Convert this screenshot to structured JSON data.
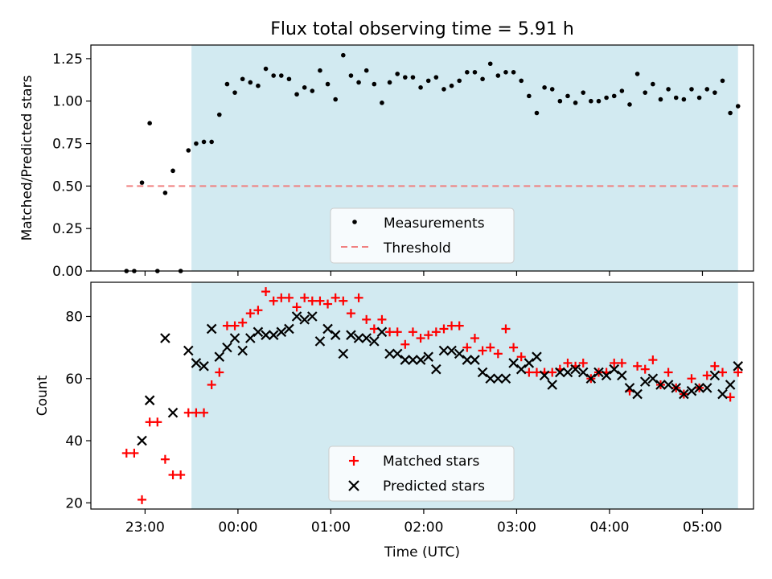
{
  "title": "Flux total observing time = 5.91 h",
  "xlabel": "Time (UTC)",
  "x_ticks": [
    "23:00",
    "00:00",
    "01:00",
    "02:00",
    "03:00",
    "04:00",
    "05:00"
  ],
  "shaded_region": {
    "start": "23:30",
    "end": "05:23",
    "color": "#add8e6"
  },
  "chart_data": [
    {
      "type": "scatter",
      "ylabel": "Matched/Predicted stars",
      "xlim": [
        "22:25",
        "05:33"
      ],
      "ylim": [
        0,
        1.33
      ],
      "y_ticks": [
        "0.00",
        "0.25",
        "0.50",
        "0.75",
        "1.00",
        "1.25"
      ],
      "legend": {
        "position": "lower-center"
      },
      "series": [
        {
          "name": "Measurements",
          "color": "#000000",
          "marker": "dot",
          "x": [
            "22:48",
            "22:53",
            "22:58",
            "23:03",
            "23:08",
            "23:13",
            "23:18",
            "23:23",
            "23:28",
            "23:33",
            "23:38",
            "23:43",
            "23:48",
            "23:53",
            "23:58",
            "00:03",
            "00:08",
            "00:13",
            "00:18",
            "00:23",
            "00:28",
            "00:33",
            "00:38",
            "00:43",
            "00:48",
            "00:53",
            "00:58",
            "01:03",
            "01:08",
            "01:13",
            "01:18",
            "01:23",
            "01:28",
            "01:33",
            "01:38",
            "01:43",
            "01:48",
            "01:53",
            "01:58",
            "02:03",
            "02:08",
            "02:13",
            "02:18",
            "02:23",
            "02:28",
            "02:33",
            "02:38",
            "02:43",
            "02:48",
            "02:53",
            "02:58",
            "03:03",
            "03:08",
            "03:13",
            "03:18",
            "03:23",
            "03:28",
            "03:33",
            "03:38",
            "03:43",
            "03:48",
            "03:53",
            "03:58",
            "04:03",
            "04:08",
            "04:13",
            "04:18",
            "04:23",
            "04:28",
            "04:33",
            "04:38",
            "04:43",
            "04:48",
            "04:53",
            "04:58",
            "05:03",
            "05:08",
            "05:13",
            "05:18",
            "05:23"
          ],
          "y": [
            0.0,
            0.0,
            0.52,
            0.87,
            0.0,
            0.46,
            0.59,
            0.0,
            0.71,
            0.75,
            0.76,
            0.76,
            0.92,
            1.1,
            1.05,
            1.13,
            1.11,
            1.09,
            1.19,
            1.15,
            1.15,
            1.13,
            1.04,
            1.08,
            1.06,
            1.18,
            1.1,
            1.01,
            1.27,
            1.15,
            1.11,
            1.18,
            1.1,
            0.99,
            1.11,
            1.16,
            1.14,
            1.14,
            1.08,
            1.12,
            1.14,
            1.07,
            1.09,
            1.12,
            1.17,
            1.17,
            1.13,
            1.22,
            1.15,
            1.17,
            1.17,
            1.12,
            1.03,
            0.93,
            1.08,
            1.07,
            1.0,
            1.03,
            0.99,
            1.05,
            1.0,
            1.0,
            1.02,
            1.03,
            1.06,
            0.98,
            1.16,
            1.05,
            1.1,
            1.01,
            1.07,
            1.02,
            1.01,
            1.07,
            1.02,
            1.07,
            1.05,
            1.12,
            0.93,
            0.97
          ]
        },
        {
          "name": "Threshold",
          "color": "#f08080",
          "style": "dashed",
          "x": [
            "22:48",
            "05:23"
          ],
          "y": [
            0.5,
            0.5
          ]
        }
      ]
    },
    {
      "type": "scatter",
      "ylabel": "Count",
      "xlim": [
        "22:25",
        "05:33"
      ],
      "ylim": [
        18,
        91
      ],
      "y_ticks": [
        "20",
        "40",
        "60",
        "80"
      ],
      "legend": {
        "position": "lower-center"
      },
      "series": [
        {
          "name": "Matched stars",
          "color": "#ff0000",
          "marker": "plus",
          "x": [
            "22:48",
            "22:53",
            "22:58",
            "23:03",
            "23:08",
            "23:13",
            "23:18",
            "23:23",
            "23:28",
            "23:33",
            "23:38",
            "23:43",
            "23:48",
            "23:53",
            "23:58",
            "00:03",
            "00:08",
            "00:13",
            "00:18",
            "00:23",
            "00:28",
            "00:33",
            "00:38",
            "00:43",
            "00:48",
            "00:53",
            "00:58",
            "01:03",
            "01:08",
            "01:13",
            "01:18",
            "01:23",
            "01:28",
            "01:33",
            "01:38",
            "01:43",
            "01:48",
            "01:53",
            "01:58",
            "02:03",
            "02:08",
            "02:13",
            "02:18",
            "02:23",
            "02:28",
            "02:33",
            "02:38",
            "02:43",
            "02:48",
            "02:53",
            "02:58",
            "03:03",
            "03:08",
            "03:13",
            "03:18",
            "03:23",
            "03:28",
            "03:33",
            "03:38",
            "03:43",
            "03:48",
            "03:53",
            "03:58",
            "04:03",
            "04:08",
            "04:13",
            "04:18",
            "04:23",
            "04:28",
            "04:33",
            "04:38",
            "04:43",
            "04:48",
            "04:53",
            "04:58",
            "05:03",
            "05:08",
            "05:13",
            "05:18",
            "05:23"
          ],
          "y": [
            36,
            36,
            21,
            46,
            46,
            34,
            29,
            29,
            49,
            49,
            49,
            58,
            62,
            77,
            77,
            78,
            81,
            82,
            88,
            85,
            86,
            86,
            83,
            86,
            85,
            85,
            84,
            86,
            85,
            81,
            86,
            79,
            76,
            79,
            75,
            75,
            71,
            75,
            73,
            74,
            75,
            76,
            77,
            77,
            70,
            73,
            69,
            70,
            68,
            76,
            70,
            67,
            62,
            62,
            62,
            62,
            63,
            65,
            64,
            65,
            60,
            62,
            62,
            65,
            65,
            56,
            64,
            63,
            66,
            58,
            62,
            57,
            55,
            60,
            57,
            61,
            64,
            62,
            54,
            62
          ]
        },
        {
          "name": "Predicted stars",
          "color": "#000000",
          "marker": "x",
          "x": [
            "22:48",
            "22:53",
            "22:58",
            "23:03",
            "23:08",
            "23:13",
            "23:18",
            "23:23",
            "23:28",
            "23:33",
            "23:38",
            "23:43",
            "23:48",
            "23:53",
            "23:58",
            "00:03",
            "00:08",
            "00:13",
            "00:18",
            "00:23",
            "00:28",
            "00:33",
            "00:38",
            "00:43",
            "00:48",
            "00:53",
            "00:58",
            "01:03",
            "01:08",
            "01:13",
            "01:18",
            "01:23",
            "01:28",
            "01:33",
            "01:38",
            "01:43",
            "01:48",
            "01:53",
            "01:58",
            "02:03",
            "02:08",
            "02:13",
            "02:18",
            "02:23",
            "02:28",
            "02:33",
            "02:38",
            "02:43",
            "02:48",
            "02:53",
            "02:58",
            "03:03",
            "03:08",
            "03:13",
            "03:18",
            "03:23",
            "03:28",
            "03:33",
            "03:38",
            "03:43",
            "03:48",
            "03:53",
            "03:58",
            "04:03",
            "04:08",
            "04:13",
            "04:18",
            "04:23",
            "04:28",
            "04:33",
            "04:38",
            "04:43",
            "04:48",
            "04:53",
            "04:58",
            "05:03",
            "05:08",
            "05:13",
            "05:18",
            "05:23"
          ],
          "y": [
            null,
            null,
            40,
            53,
            null,
            73,
            49,
            null,
            69,
            65,
            64,
            76,
            67,
            70,
            73,
            69,
            73,
            75,
            74,
            74,
            75,
            76,
            80,
            79,
            80,
            72,
            76,
            74,
            68,
            74,
            73,
            73,
            72,
            75,
            68,
            68,
            66,
            66,
            66,
            67,
            63,
            69,
            69,
            68,
            66,
            66,
            62,
            60,
            60,
            60,
            65,
            63,
            65,
            67,
            61,
            58,
            62,
            62,
            63,
            62,
            60,
            62,
            61,
            63,
            61,
            57,
            55,
            59,
            60,
            58,
            58,
            57,
            55,
            56,
            57,
            57,
            61,
            55,
            58,
            64
          ]
        }
      ]
    }
  ]
}
